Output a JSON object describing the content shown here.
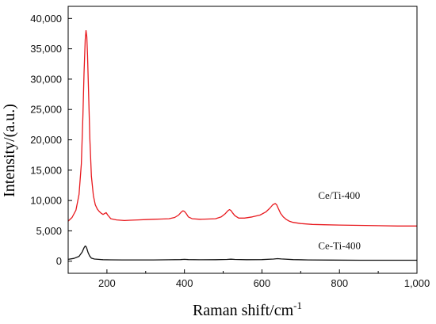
{
  "chart_data": {
    "type": "line",
    "xlabel": "Raman shift/cm",
    "xlabel_superscript": "-1",
    "ylabel": "Intensity/(a.u.)",
    "xlim": [
      100,
      1000
    ],
    "ylim": [
      -2000,
      42000
    ],
    "x_ticks": [
      200,
      400,
      600,
      800,
      1000
    ],
    "x_tick_labels": [
      "200",
      "400",
      "600",
      "800",
      "1,000"
    ],
    "y_ticks": [
      0,
      5000,
      10000,
      15000,
      20000,
      25000,
      30000,
      35000,
      40000
    ],
    "y_tick_labels": [
      "0",
      "5,000",
      "10,000",
      "15,000",
      "20,000",
      "25,000",
      "30,000",
      "35,000",
      "40,000"
    ],
    "grid": false,
    "series": [
      {
        "name": "Ce/Ti-400",
        "color": "#e8191e",
        "x": [
          100,
          110,
          120,
          128,
          134,
          138,
          141,
          144,
          146,
          148,
          150,
          153,
          156,
          160,
          165,
          170,
          175,
          180,
          185,
          190,
          194,
          198,
          202,
          210,
          225,
          245,
          260,
          280,
          300,
          320,
          340,
          360,
          375,
          385,
          392,
          396,
          400,
          405,
          410,
          420,
          440,
          460,
          480,
          495,
          505,
          512,
          516,
          520,
          525,
          530,
          540,
          555,
          575,
          595,
          610,
          620,
          628,
          634,
          638,
          642,
          648,
          655,
          662,
          670,
          680,
          700,
          730,
          760,
          800,
          850,
          900,
          950,
          1000
        ],
        "y": [
          6600,
          7200,
          8400,
          11000,
          16000,
          24000,
          31000,
          36500,
          38000,
          37000,
          34000,
          27000,
          20000,
          14000,
          10800,
          9300,
          8600,
          8200,
          7900,
          7700,
          7850,
          8000,
          7600,
          7000,
          6800,
          6700,
          6750,
          6800,
          6850,
          6900,
          6950,
          7000,
          7200,
          7600,
          8100,
          8300,
          8200,
          7800,
          7300,
          7000,
          6900,
          6950,
          7000,
          7300,
          7800,
          8300,
          8500,
          8350,
          7900,
          7500,
          7100,
          7100,
          7300,
          7600,
          8100,
          8700,
          9300,
          9500,
          9300,
          8700,
          7900,
          7300,
          6900,
          6600,
          6400,
          6200,
          6050,
          6000,
          5950,
          5900,
          5850,
          5800,
          5800
        ]
      },
      {
        "name": "Ce-Ti-400",
        "color": "#111111",
        "x": [
          100,
          115,
          128,
          136,
          141,
          144,
          146,
          148,
          151,
          155,
          160,
          168,
          178,
          190,
          210,
          240,
          280,
          320,
          360,
          390,
          400,
          410,
          440,
          480,
          510,
          520,
          530,
          560,
          600,
          630,
          640,
          650,
          680,
          720,
          780,
          850,
          920,
          1000
        ],
        "y": [
          300,
          450,
          800,
          1500,
          2200,
          2500,
          2400,
          2100,
          1500,
          900,
          500,
          350,
          300,
          250,
          220,
          200,
          200,
          210,
          230,
          260,
          300,
          260,
          230,
          240,
          280,
          330,
          280,
          240,
          260,
          350,
          420,
          360,
          260,
          210,
          180,
          160,
          150,
          150
        ]
      }
    ],
    "annotations": [
      {
        "text": "Ce/Ti-400",
        "x": 745,
        "y": 10300
      },
      {
        "text": "Ce-Ti-400",
        "x": 745,
        "y": 2000
      }
    ]
  }
}
